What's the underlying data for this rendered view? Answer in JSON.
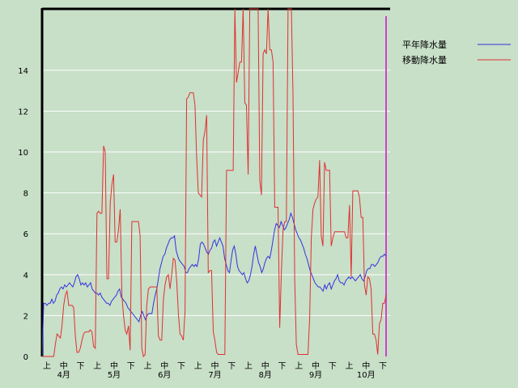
{
  "chart_data": {
    "type": "line",
    "ylim": [
      0,
      17
    ],
    "yticks": [
      0,
      2,
      4,
      6,
      8,
      10,
      12,
      14
    ],
    "grid": true,
    "legend_position": "top-right",
    "xticks_sub": [
      "上",
      "中",
      "下",
      "上",
      "中",
      "下",
      "上",
      "中",
      "下",
      "上",
      "中",
      "下",
      "上",
      "中",
      "下",
      "上",
      "中",
      "下",
      "上",
      "中",
      "下"
    ],
    "xticks_month": [
      "4月",
      "5月",
      "6月",
      "7月",
      "8月",
      "9月",
      "10月"
    ],
    "series": [
      {
        "name": "平年降水量",
        "color": "#3333dd",
        "values": [
          0,
          2.6,
          2.6,
          2.5,
          2.6,
          2.6,
          2.8,
          2.6,
          2.7,
          3.0,
          3.1,
          3.3,
          3.4,
          3.3,
          3.5,
          3.4,
          3.5,
          3.6,
          3.5,
          3.4,
          3.6,
          3.9,
          4.0,
          3.8,
          3.5,
          3.6,
          3.5,
          3.6,
          3.4,
          3.5,
          3.6,
          3.3,
          3.2,
          3.1,
          3.1,
          3.0,
          3.1,
          2.9,
          2.8,
          2.7,
          2.6,
          2.6,
          2.5,
          2.7,
          2.8,
          2.9,
          3.0,
          3.2,
          3.3,
          2.9,
          2.8,
          2.7,
          2.6,
          2.4,
          2.3,
          2.2,
          2.1,
          2.0,
          1.9,
          1.8,
          1.7,
          2.0,
          2.2,
          2.0,
          1.8,
          2.0,
          2.1,
          2.1,
          2.1,
          2.6,
          3.0,
          3.3,
          3.8,
          4.3,
          4.6,
          4.9,
          5.0,
          5.3,
          5.5,
          5.7,
          5.8,
          5.8,
          5.9,
          5.2,
          4.9,
          4.7,
          4.6,
          4.5,
          4.4,
          4.1,
          4.1,
          4.3,
          4.4,
          4.5,
          4.4,
          4.5,
          4.4,
          4.8,
          5.5,
          5.6,
          5.5,
          5.3,
          5.1,
          5.0,
          5.2,
          5.3,
          5.6,
          5.7,
          5.4,
          5.6,
          5.8,
          5.6,
          5.4,
          4.8,
          4.5,
          4.2,
          4.1,
          4.7,
          5.2,
          5.4,
          5.0,
          4.4,
          4.2,
          4.1,
          4.0,
          4.1,
          3.8,
          3.6,
          3.7,
          4.0,
          4.4,
          5.0,
          5.4,
          5.0,
          4.6,
          4.4,
          4.1,
          4.3,
          4.6,
          4.8,
          4.9,
          4.8,
          5.2,
          5.7,
          6.2,
          6.5,
          6.4,
          6.3,
          6.6,
          6.4,
          6.2,
          6.3,
          6.5,
          6.7,
          7.0,
          6.8,
          6.5,
          6.2,
          6.0,
          5.8,
          5.7,
          5.5,
          5.3,
          5.0,
          4.8,
          4.5,
          4.2,
          4.0,
          3.8,
          3.6,
          3.5,
          3.4,
          3.4,
          3.3,
          3.2,
          3.5,
          3.3,
          3.5,
          3.6,
          3.3,
          3.5,
          3.7,
          3.8,
          4.0,
          3.7,
          3.6,
          3.6,
          3.5,
          3.7,
          3.8,
          3.9,
          3.8,
          3.9,
          3.8,
          3.7,
          3.8,
          3.9,
          4.0,
          3.8,
          3.7,
          3.9,
          4.2,
          4.3,
          4.3,
          4.5,
          4.5,
          4.4,
          4.5,
          4.6,
          4.8,
          4.9,
          4.9,
          5.0,
          4.9
        ]
      },
      {
        "name": "移動降水量",
        "color": "#e03030",
        "values": [
          0,
          0,
          0,
          0,
          0,
          0,
          0,
          0,
          0.6,
          1.1,
          1.0,
          0.9,
          1.5,
          2.5,
          3.0,
          3.2,
          2.5,
          2.5,
          2.5,
          2.4,
          1.0,
          0.2,
          0.2,
          0.4,
          0.8,
          1.1,
          1.2,
          1.2,
          1.2,
          1.3,
          1.2,
          0.5,
          0.4,
          7.0,
          7.1,
          7.0,
          7.0,
          10.3,
          10.0,
          3.8,
          3.8,
          7.5,
          8.4,
          8.9,
          5.6,
          5.6,
          6.2,
          7.2,
          3.0,
          2.0,
          1.3,
          1.1,
          1.5,
          0.3,
          6.6,
          6.6,
          6.6,
          6.6,
          6.6,
          5.9,
          0.4,
          0,
          0.1,
          2.5,
          3.3,
          3.4,
          3.4,
          3.4,
          3.4,
          3.4,
          1.0,
          0.8,
          0.8,
          2.8,
          3.5,
          3.9,
          4.0,
          3.3,
          4.0,
          4.8,
          4.7,
          3.7,
          2.1,
          1.1,
          1.0,
          0.8,
          2.2,
          12.6,
          12.7,
          12.9,
          12.9,
          12.9,
          12.3,
          9.8,
          8.0,
          7.9,
          7.8,
          10.6,
          11.0,
          11.8,
          4.1,
          4.2,
          4.2,
          1.2,
          0.8,
          0.2,
          0.1,
          0.1,
          0.1,
          0.1,
          0.1,
          9.1,
          9.1,
          9.1,
          9.1,
          9.1,
          17.0,
          13.4,
          13.9,
          14.4,
          14.4,
          17.0,
          12.4,
          12.3,
          8.9,
          17.0,
          17.0,
          17.0,
          17.0,
          17.0,
          17.0,
          8.6,
          7.9,
          14.8,
          15.0,
          14.8,
          17.0,
          15.0,
          15.0,
          14.4,
          7.3,
          7.3,
          7.3,
          1.4,
          4.2,
          6.2,
          6.6,
          6.6,
          17.0,
          17.0,
          17.0,
          12.8,
          3.8,
          0.6,
          0.1,
          0.1,
          0.1,
          0.1,
          0.1,
          0.1,
          0.1,
          1.9,
          5.8,
          7.2,
          7.5,
          7.7,
          7.8,
          9.6,
          5.9,
          5.4,
          9.5,
          9.1,
          9.1,
          9.1,
          5.4,
          5.8,
          6.1,
          6.1,
          6.1,
          6.1,
          6.1,
          6.1,
          6.1,
          5.8,
          5.8,
          7.4,
          3.9,
          8.1,
          8.1,
          8.1,
          8.1,
          7.8,
          6.8,
          6.8,
          3.5,
          3.0,
          3.9,
          3.8,
          3.3,
          1.1,
          1.1,
          0.8,
          0.1,
          1.6,
          1.8,
          2.6,
          2.6,
          3.0
        ]
      }
    ]
  }
}
